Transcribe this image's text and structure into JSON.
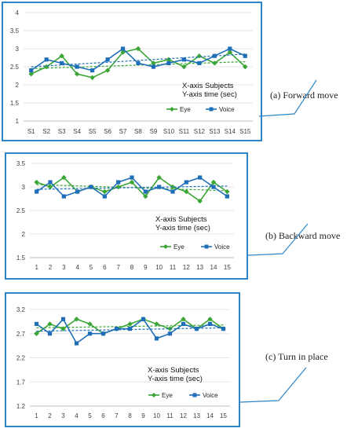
{
  "colors": {
    "eye": "#3aa535",
    "voice": "#1f6fb8",
    "panel_border": "#2e86c8",
    "grid": "#e6e6e6",
    "axis_text": "#404040"
  },
  "chart_data": [
    {
      "type": "line",
      "caption": "(a) Forward move",
      "categories": [
        "S1",
        "S2",
        "S3",
        "S4",
        "S5",
        "S6",
        "S7",
        "S8",
        "S9",
        "S10",
        "S11",
        "S12",
        "S13",
        "S14",
        "S15"
      ],
      "ylim": [
        1,
        4
      ],
      "yticks": [
        "1",
        "1.5",
        "2",
        "2.5",
        "3",
        "3.5",
        "4"
      ],
      "ytick_values": [
        1,
        1.5,
        2,
        2.5,
        3,
        3.5,
        4
      ],
      "axis_note": [
        "X-axis  Subjects",
        "Y-axis   time (sec)"
      ],
      "legend_position": "right",
      "series": [
        {
          "name": "Eye",
          "values": [
            2.3,
            2.5,
            2.8,
            2.3,
            2.2,
            2.4,
            2.9,
            3.0,
            2.6,
            2.7,
            2.5,
            2.8,
            2.6,
            2.9,
            2.5
          ],
          "trend": [
            2.45,
            2.64
          ]
        },
        {
          "name": "Voice",
          "values": [
            2.4,
            2.7,
            2.6,
            2.5,
            2.4,
            2.7,
            3.0,
            2.6,
            2.5,
            2.6,
            2.7,
            2.6,
            2.8,
            3.0,
            2.8
          ],
          "trend": [
            2.5,
            2.85
          ]
        }
      ]
    },
    {
      "type": "line",
      "caption": "(b) Backward move",
      "categories": [
        "1",
        "2",
        "3",
        "4",
        "5",
        "6",
        "7",
        "8",
        "9",
        "10",
        "11",
        "12",
        "13",
        "14",
        "15"
      ],
      "ylim": [
        1.5,
        3.5
      ],
      "yticks": [
        "1.5",
        "2",
        "2.5",
        "3",
        "3.5"
      ],
      "ytick_values": [
        1.5,
        2,
        2.5,
        3,
        3.5
      ],
      "axis_note": [
        "X-axis  Subjects",
        "Y-axis   time (sec)"
      ],
      "legend_position": "bottom",
      "series": [
        {
          "name": "Eye",
          "values": [
            3.1,
            3.0,
            3.2,
            2.9,
            3.0,
            2.9,
            3.0,
            3.1,
            2.8,
            3.2,
            3.0,
            2.9,
            2.7,
            3.1,
            2.9
          ],
          "trend": [
            3.05,
            2.92
          ]
        },
        {
          "name": "Voice",
          "values": [
            2.9,
            3.1,
            2.8,
            2.9,
            3.0,
            2.8,
            3.1,
            3.2,
            2.9,
            3.0,
            2.9,
            3.1,
            3.2,
            3.0,
            2.8
          ],
          "trend": [
            2.95,
            3.02
          ]
        }
      ]
    },
    {
      "type": "line",
      "caption": "(c) Turn in place",
      "categories": [
        "1",
        "2",
        "3",
        "4",
        "5",
        "6",
        "7",
        "8",
        "9",
        "10",
        "11",
        "12",
        "13",
        "14",
        "15"
      ],
      "ylim": [
        1.2,
        3.2
      ],
      "yticks": [
        "1.2",
        "1.7",
        "2.2",
        "2.7",
        "3.2"
      ],
      "ytick_values": [
        1.2,
        1.7,
        2.2,
        2.7,
        3.2
      ],
      "axis_note": [
        "X-axis  Subjects",
        "Y-axis   time (sec)"
      ],
      "legend_position": "bottom",
      "series": [
        {
          "name": "Eye",
          "values": [
            2.7,
            2.9,
            2.8,
            3.0,
            2.9,
            2.7,
            2.8,
            2.9,
            3.0,
            2.9,
            2.8,
            3.0,
            2.8,
            3.0,
            2.8
          ],
          "trend": [
            2.82,
            2.88
          ]
        },
        {
          "name": "Voice",
          "values": [
            2.9,
            2.7,
            3.0,
            2.5,
            2.7,
            2.7,
            2.8,
            2.8,
            3.0,
            2.6,
            2.7,
            2.9,
            2.8,
            2.9,
            2.8
          ],
          "trend": [
            2.75,
            2.82
          ]
        }
      ]
    }
  ]
}
